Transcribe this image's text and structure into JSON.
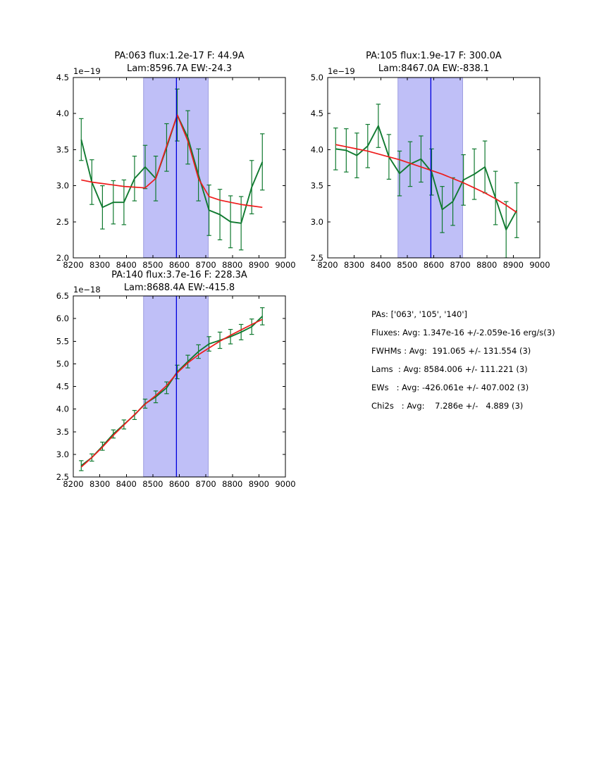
{
  "colors": {
    "background": "#ffffff",
    "frame": "#000000",
    "band_fill": "#bfbff7",
    "band_edge": "#9f9fe0",
    "vline": "#0000dd",
    "spectrum": "#107a30",
    "fit": "#ee1c1c"
  },
  "chart_data": [
    {
      "type": "line",
      "title_line1": "PA:063 flux:1.2e-17 F: 44.9A",
      "title_line2": "Lam:8596.7A EW:-24.3",
      "offset_label": "1e−19",
      "xlim": [
        8200,
        9000
      ],
      "ylim": [
        2.0,
        4.5
      ],
      "xticks": [
        8200,
        8300,
        8400,
        8500,
        8600,
        8700,
        8800,
        8900,
        9000
      ],
      "yticks": [
        2.0,
        2.5,
        3.0,
        3.5,
        4.0,
        4.5
      ],
      "band": [
        8465,
        8709
      ],
      "vline": 8589,
      "grid": false,
      "x": [
        8230,
        8270,
        8310,
        8351,
        8391,
        8431,
        8471,
        8511,
        8552,
        8592,
        8632,
        8672,
        8712,
        8753,
        8793,
        8833,
        8873,
        8913
      ],
      "series": [
        {
          "name": "spectrum",
          "values": [
            3.64,
            3.05,
            2.7,
            2.77,
            2.77,
            3.1,
            3.26,
            3.1,
            3.53,
            3.98,
            3.67,
            3.15,
            2.66,
            2.6,
            2.5,
            2.48,
            2.98,
            3.33
          ],
          "errors": [
            0.29,
            0.31,
            0.3,
            0.3,
            0.31,
            0.31,
            0.3,
            0.31,
            0.33,
            0.36,
            0.37,
            0.36,
            0.35,
            0.35,
            0.36,
            0.37,
            0.37,
            0.39
          ]
        },
        {
          "name": "fit",
          "values": [
            3.08,
            3.05,
            3.03,
            3.01,
            2.99,
            2.98,
            2.97,
            3.1,
            3.55,
            3.98,
            3.62,
            3.1,
            2.85,
            2.8,
            2.77,
            2.74,
            2.72,
            2.7
          ]
        }
      ]
    },
    {
      "type": "line",
      "title_line1": "PA:105 flux:1.9e-17 F: 300.0A",
      "title_line2": "Lam:8467.0A EW:-838.1",
      "offset_label": "1e−19",
      "xlim": [
        8200,
        9000
      ],
      "ylim": [
        2.5,
        5.0
      ],
      "xticks": [
        8200,
        8300,
        8400,
        8500,
        8600,
        8700,
        8800,
        8900,
        9000
      ],
      "yticks": [
        2.5,
        3.0,
        3.5,
        4.0,
        4.5,
        5.0
      ],
      "band": [
        8465,
        8709
      ],
      "vline": 8589,
      "grid": false,
      "x": [
        8230,
        8270,
        8310,
        8351,
        8391,
        8431,
        8471,
        8511,
        8552,
        8592,
        8632,
        8672,
        8712,
        8753,
        8793,
        8833,
        8873,
        8913
      ],
      "series": [
        {
          "name": "spectrum",
          "values": [
            4.01,
            3.99,
            3.92,
            4.05,
            4.33,
            3.9,
            3.67,
            3.8,
            3.87,
            3.69,
            3.17,
            3.28,
            3.58,
            3.66,
            3.76,
            3.33,
            2.89,
            3.16
          ],
          "errors": [
            0.29,
            0.3,
            0.31,
            0.3,
            0.3,
            0.31,
            0.31,
            0.31,
            0.32,
            0.32,
            0.32,
            0.33,
            0.35,
            0.35,
            0.36,
            0.37,
            0.39,
            0.38
          ]
        },
        {
          "name": "fit",
          "values": [
            4.07,
            4.04,
            4.01,
            3.98,
            3.94,
            3.9,
            3.86,
            3.81,
            3.76,
            3.71,
            3.66,
            3.6,
            3.54,
            3.47,
            3.4,
            3.32,
            3.23,
            3.13
          ]
        }
      ]
    },
    {
      "type": "line",
      "title_line1": "PA:140 flux:3.7e-16 F: 228.3A",
      "title_line2": "Lam:8688.4A EW:-415.8",
      "offset_label": "1e−18",
      "xlim": [
        8200,
        9000
      ],
      "ylim": [
        2.5,
        6.5
      ],
      "xticks": [
        8200,
        8300,
        8400,
        8500,
        8600,
        8700,
        8800,
        8900,
        9000
      ],
      "yticks": [
        2.5,
        3.0,
        3.5,
        4.0,
        4.5,
        5.0,
        5.5,
        6.0,
        6.5
      ],
      "band": [
        8465,
        8709
      ],
      "vline": 8589,
      "grid": false,
      "x": [
        8230,
        8270,
        8310,
        8351,
        8391,
        8431,
        8471,
        8511,
        8552,
        8592,
        8632,
        8672,
        8712,
        8753,
        8793,
        8833,
        8873,
        8913
      ],
      "series": [
        {
          "name": "spectrum",
          "values": [
            2.75,
            2.93,
            3.18,
            3.45,
            3.66,
            3.87,
            4.12,
            4.27,
            4.47,
            4.82,
            5.05,
            5.27,
            5.44,
            5.52,
            5.6,
            5.7,
            5.82,
            6.05
          ],
          "errors": [
            0.11,
            0.08,
            0.09,
            0.09,
            0.1,
            0.1,
            0.1,
            0.13,
            0.13,
            0.15,
            0.14,
            0.15,
            0.16,
            0.18,
            0.16,
            0.17,
            0.17,
            0.19
          ]
        },
        {
          "name": "fit",
          "values": [
            2.72,
            2.93,
            3.16,
            3.42,
            3.65,
            3.88,
            4.11,
            4.3,
            4.52,
            4.8,
            5.02,
            5.2,
            5.35,
            5.5,
            5.63,
            5.75,
            5.87,
            5.98
          ]
        }
      ]
    }
  ],
  "stats": {
    "lines": [
      "PAs: ['063', '105', '140']",
      "Fluxes: Avg: 1.347e-16 +/-2.059e-16 erg/s(3)",
      "FWHMs : Avg:  191.065 +/- 131.554 (3)",
      "Lams  : Avg: 8584.006 +/- 111.221 (3)",
      "EWs   : Avg: -426.061e +/- 407.002 (3)",
      "Chi2s   : Avg:    7.286e +/-   4.889 (3)"
    ]
  }
}
